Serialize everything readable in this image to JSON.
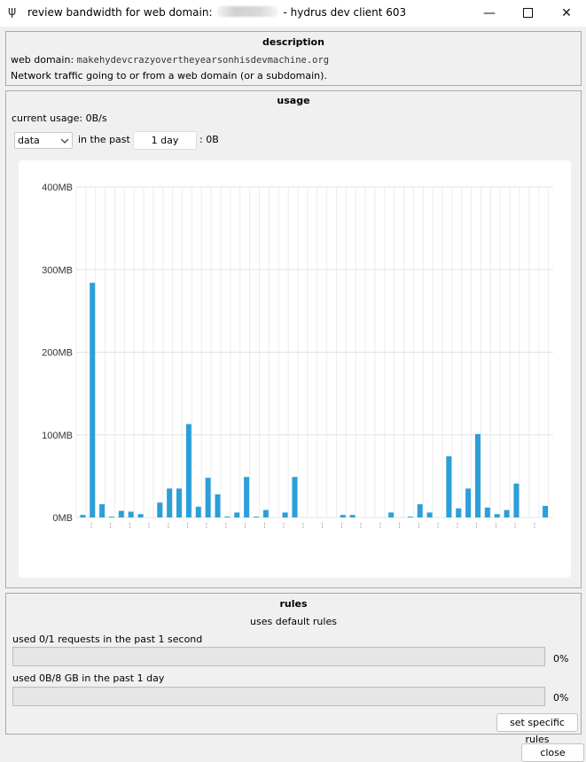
{
  "window": {
    "title_prefix": "review bandwidth for web domain:",
    "title_suffix": "- hydrus dev client 603",
    "app_icon": "ψ",
    "controls": {
      "minimize": "—",
      "close": "✕"
    }
  },
  "description": {
    "title": "description",
    "domain_label": "web domain:",
    "domain_value": "makehydevcrazyovertheyearsonhisdevmachine.org",
    "note": "Network traffic going to or from a web domain (or a subdomain)."
  },
  "usage": {
    "title": "usage",
    "current_usage": "current usage: 0B/s",
    "type_select": "data",
    "in_the_past": "in the past",
    "time_value": "1 day",
    "total": ": 0B"
  },
  "chart_data": {
    "type": "bar",
    "ylim": [
      0,
      400
    ],
    "y_ticks": [
      0,
      100,
      200,
      300,
      400
    ],
    "y_tick_labels": [
      "0MB",
      "100MB",
      "200MB",
      "300MB",
      "400MB"
    ],
    "x_tick_label": "...",
    "grid": true,
    "bar_color": "#2b9fd9",
    "values": [
      3,
      284,
      16,
      1,
      8,
      7,
      4,
      0,
      18,
      35,
      35,
      113,
      13,
      48,
      28,
      1,
      6,
      49,
      1,
      9,
      0,
      6,
      49,
      0,
      0,
      0,
      0,
      3,
      3,
      0,
      0,
      0,
      6,
      0,
      1,
      16,
      6,
      0,
      74,
      11,
      35,
      101,
      12,
      4,
      9,
      41,
      0,
      0,
      14
    ]
  },
  "rules": {
    "title": "rules",
    "default_text": "uses default rules",
    "rule1_label": "used 0/1 requests in the past 1 second",
    "rule1_percent": "0%",
    "rule1_fraction": 0,
    "rule2_label": "used 0B/8 GB in the past 1 day",
    "rule2_percent": "0%",
    "rule2_fraction": 0,
    "set_specific": "set specific rules"
  },
  "footer": {
    "close": "close"
  }
}
